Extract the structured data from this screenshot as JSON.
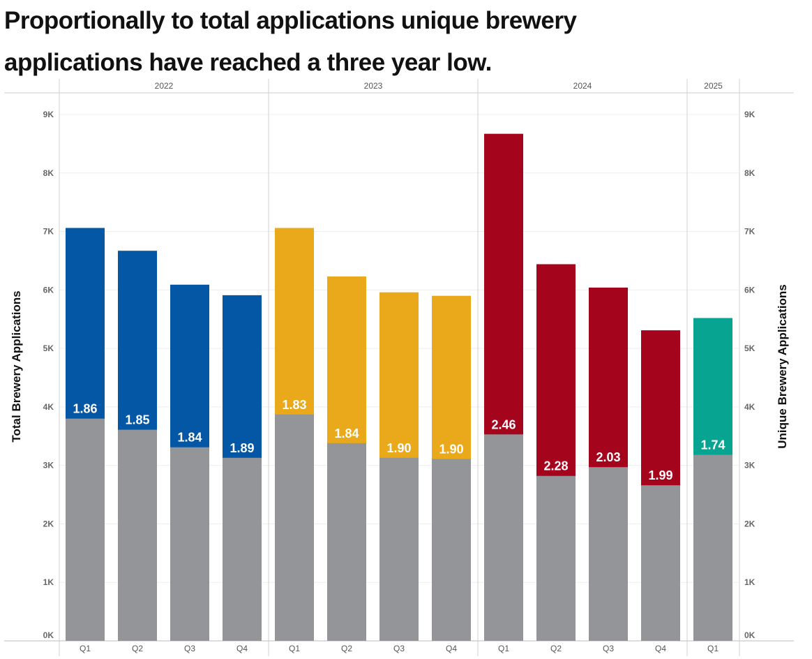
{
  "title_line1": "Proportionally to total applications unique brewery",
  "title_line2": "applications have reached a three year low.",
  "chart_data": {
    "type": "bar",
    "stacked_overlay": true,
    "years": [
      {
        "label": "2022",
        "count": 4
      },
      {
        "label": "2023",
        "count": 4
      },
      {
        "label": "2024",
        "count": 4
      },
      {
        "label": "2025",
        "count": 1
      }
    ],
    "categories": [
      "Q1",
      "Q2",
      "Q3",
      "Q4",
      "Q1",
      "Q2",
      "Q3",
      "Q4",
      "Q1",
      "Q2",
      "Q3",
      "Q4",
      "Q1"
    ],
    "series": [
      {
        "name": "Total Brewery Applications",
        "values": [
          7060,
          6670,
          6090,
          5910,
          7060,
          6230,
          5960,
          5900,
          8670,
          6440,
          6040,
          5310,
          5520
        ]
      },
      {
        "name": "Unique Brewery Applications",
        "values": [
          3800,
          3610,
          3310,
          3130,
          3870,
          3380,
          3130,
          3110,
          3530,
          2820,
          2970,
          2660,
          3180
        ]
      }
    ],
    "ratio_labels": [
      "1.86",
      "1.85",
      "1.84",
      "1.89",
      "1.83",
      "1.84",
      "1.90",
      "1.90",
      "2.46",
      "2.28",
      "2.03",
      "1.99",
      "1.74"
    ],
    "year_colors": [
      "#0457a4",
      "#e9a91b",
      "#a4051d",
      "#07a591"
    ],
    "unique_color": "#939598",
    "ylabel_left": "Total Brewery Applications",
    "ylabel_right": "Unique Brewery Applications",
    "ylim": [
      0,
      9000
    ],
    "yticks": [
      0,
      1000,
      2000,
      3000,
      4000,
      5000,
      6000,
      7000,
      8000,
      9000
    ],
    "ytick_labels": [
      "0K",
      "1K",
      "2K",
      "3K",
      "4K",
      "5K",
      "6K",
      "7K",
      "8K",
      "9K"
    ],
    "grid": true
  }
}
